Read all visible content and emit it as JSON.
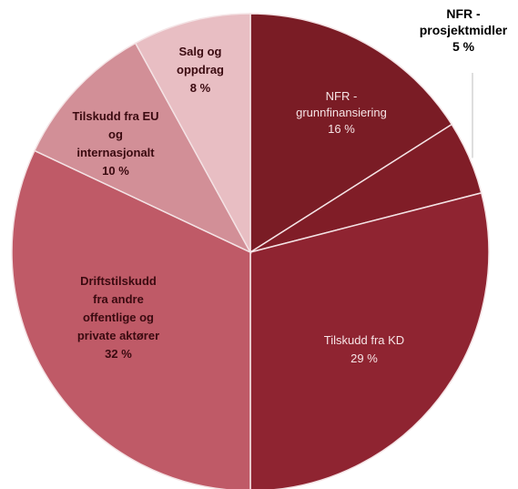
{
  "chart_data": {
    "type": "pie",
    "title": "",
    "slices": [
      {
        "label": [
          "NFR -",
          "grunnfinansiering"
        ],
        "value_label": "16 %",
        "value": 16,
        "color": "#7a1c25",
        "label_style": "light"
      },
      {
        "label": [
          "NFR -",
          "prosjektmidler"
        ],
        "value_label": "5 %",
        "value": 5,
        "color": "#801d27",
        "label_style": "outside"
      },
      {
        "label": [
          "Tilskudd  fra KD"
        ],
        "value_label": "29 %",
        "value": 29,
        "color": "#8f2431",
        "label_style": "light"
      },
      {
        "label": [
          "Driftstilskudd",
          "fra andre",
          "offentlige og",
          "private aktører"
        ],
        "value_label": "32 %",
        "value": 32,
        "color": "#bf5a67",
        "label_style": "dark"
      },
      {
        "label": [
          "Tilskudd fra EU",
          "og",
          "internasjonalt"
        ],
        "value_label": "10 %",
        "value": 10,
        "color": "#d28f97",
        "label_style": "dark"
      },
      {
        "label": [
          "Salg og",
          "oppdrag"
        ],
        "value_label": "8 %",
        "value": 8,
        "color": "#e8bec3",
        "label_style": "dark"
      }
    ]
  }
}
